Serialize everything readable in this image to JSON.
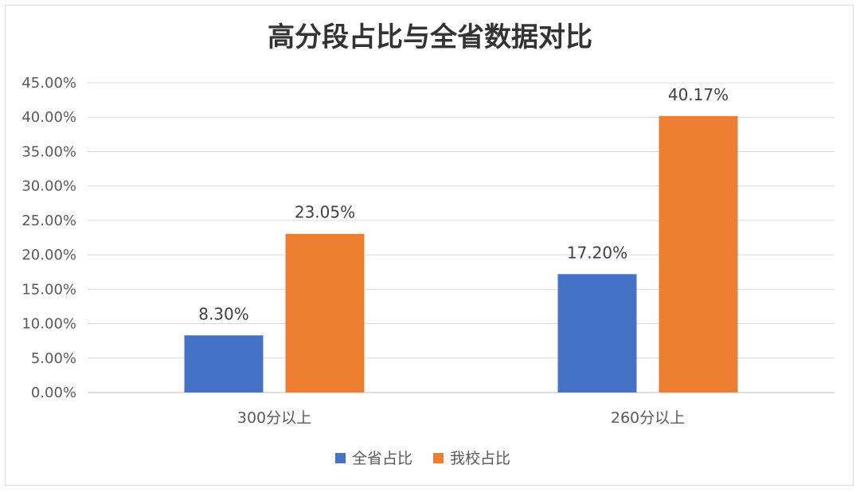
{
  "chart_data": {
    "type": "bar",
    "title": "高分段占比与全省数据对比",
    "categories": [
      "300分以上",
      "260分以上"
    ],
    "series": [
      {
        "name": "全省占比",
        "values": [
          8.3,
          17.2
        ],
        "labels": [
          "8.30%",
          "17.20%"
        ],
        "color": "#4472C4"
      },
      {
        "name": "我校占比",
        "values": [
          23.05,
          40.17
        ],
        "labels": [
          "23.05%",
          "40.17%"
        ],
        "color": "#ED7D31"
      }
    ],
    "ylim": [
      0,
      45
    ],
    "yticks": [
      0,
      5,
      10,
      15,
      20,
      25,
      30,
      35,
      40,
      45
    ],
    "ytick_labels": [
      "0.00%",
      "5.00%",
      "10.00%",
      "15.00%",
      "20.00%",
      "25.00%",
      "30.00%",
      "35.00%",
      "40.00%",
      "45.00%"
    ],
    "grid": true,
    "legend_position": "bottom"
  }
}
